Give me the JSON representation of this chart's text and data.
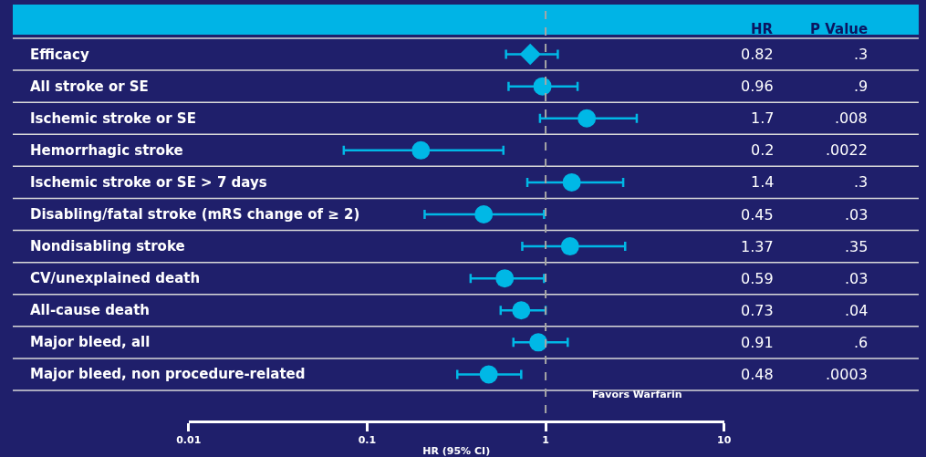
{
  "chart_data": {
    "type": "scatter",
    "categories": [
      "Efficacy",
      "All stroke or SE",
      "Ischemic stroke or SE",
      "Hemorrhagic stroke",
      "Ischemic stroke or SE > 7 days",
      "Disabling/fatal stroke (mRS change of ≥ 2)",
      "Nondisabling stroke",
      "CV/unexplained death",
      "All-cause death",
      "Major bleed, all",
      "Major bleed, non procedure-related"
    ],
    "series": [
      {
        "color": "#00b8e6",
        "marker": "diamond",
        "values": [
          0.82,
          null,
          null,
          null,
          null,
          null,
          null,
          null,
          null,
          null,
          null
        ],
        "errors": [
          [
            0.6,
            1.17
          ],
          null,
          null,
          null,
          null,
          null,
          null,
          null,
          null,
          null,
          null
        ]
      },
      {
        "color": "#00b8e6",
        "marker": "circle",
        "values": [
          null,
          0.96,
          1.7,
          0.2,
          1.4,
          0.45,
          1.37,
          0.59,
          0.73,
          0.91,
          0.48
        ],
        "errors": [
          null,
          [
            0.62,
            1.51
          ],
          [
            0.93,
            3.24
          ],
          [
            0.074,
            0.58
          ],
          [
            0.79,
            2.72
          ],
          [
            0.21,
            0.98
          ],
          [
            0.74,
            2.79
          ],
          [
            0.38,
            0.98
          ],
          [
            0.56,
            1.0
          ],
          [
            0.66,
            1.33
          ],
          [
            0.32,
            0.73
          ]
        ]
      }
    ],
    "orientation": "horizontal",
    "log": "x",
    "xlim": [
      0.01,
      10
    ],
    "xticks": [
      0.01,
      0.1,
      1,
      10
    ],
    "xlabel": "HR (95% CI)",
    "ref_lines": [
      {
        "axis": "x",
        "value": 1,
        "color": "#a6a6a6",
        "line_style": "dashed"
      }
    ],
    "annotations": [
      "HR",
      "P Value",
      "Favors Warfarin",
      "0.82",
      "0.96",
      "1.7",
      "0.2",
      "1.4",
      "0.45",
      "1.37",
      "0.59",
      "0.73",
      "0.91",
      "0.48",
      ".3",
      ".9",
      ".008",
      ".0022",
      ".3",
      ".03",
      ".35",
      ".03",
      ".04",
      ".6",
      ".0003"
    ],
    "grid": false
  }
}
